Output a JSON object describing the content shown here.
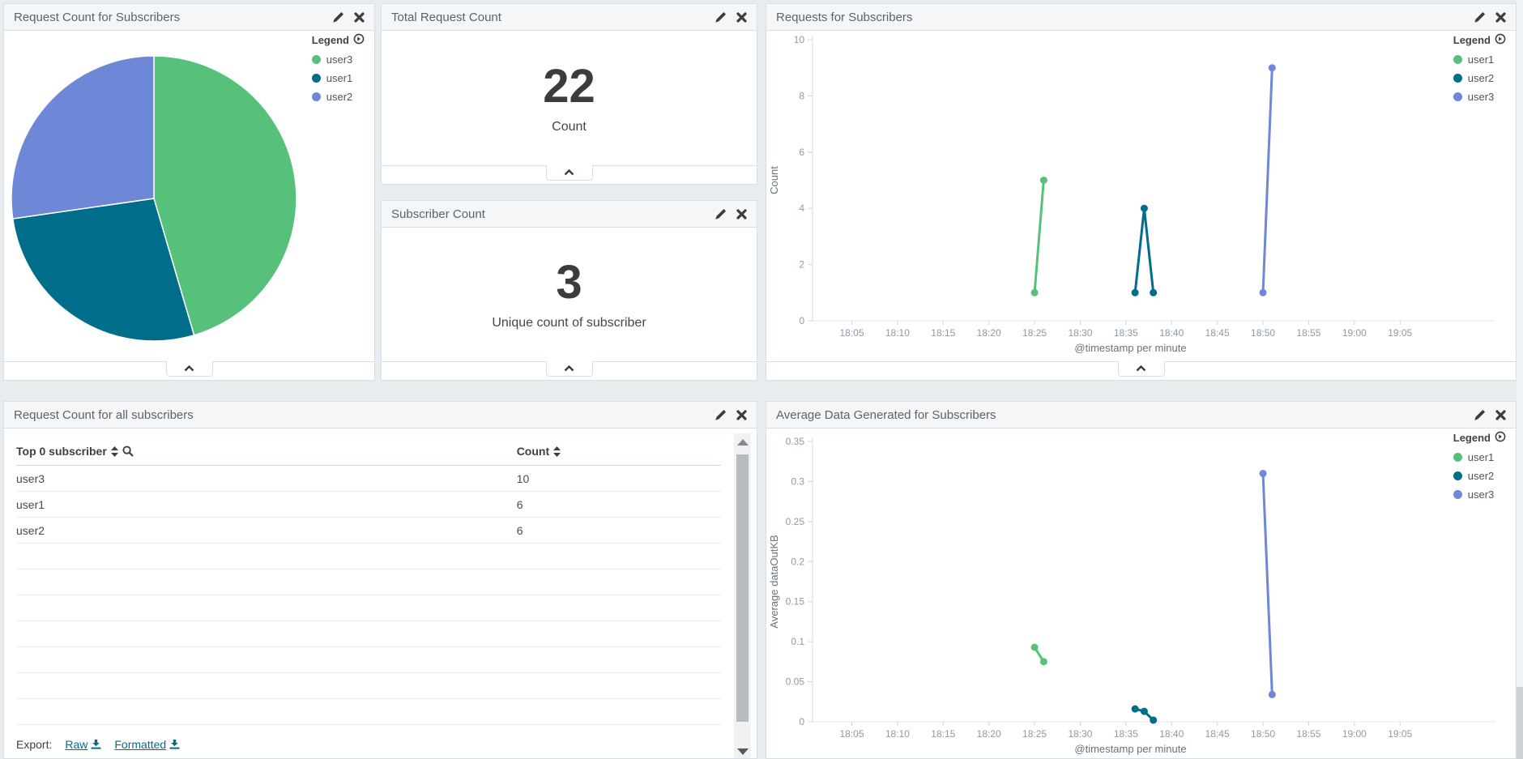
{
  "palette": {
    "user1_chart": "#57c17b",
    "user2_chart": "#006e8a",
    "user3_chart": "#6f87d7"
  },
  "panels": {
    "pie": {
      "title": "Request Count for Subscribers"
    },
    "total_requests": {
      "title": "Total Request Count",
      "value": "22",
      "label": "Count"
    },
    "subscriber_count": {
      "title": "Subscriber Count",
      "value": "3",
      "label": "Unique count of subscriber"
    },
    "requests_chart": {
      "title": "Requests for Subscribers"
    },
    "table": {
      "title": "Request Count for all subscribers",
      "export_label": "Export:",
      "export_links": [
        "Raw",
        "Formatted"
      ]
    },
    "avg_chart": {
      "title": "Average Data Generated for Subscribers"
    }
  },
  "chart_data": [
    {
      "panel": "pie",
      "type": "pie",
      "title": "Request Count for Subscribers",
      "legend_title": "Legend",
      "legend_position": "top-right",
      "start_angle": "top",
      "direction": "clockwise",
      "slices": [
        {
          "label": "user3",
          "value": 10,
          "color": "#57c17b"
        },
        {
          "label": "user1",
          "value": 6,
          "color": "#006e8a"
        },
        {
          "label": "user2",
          "value": 6,
          "color": "#6f87d7"
        }
      ]
    },
    {
      "panel": "requests_chart",
      "type": "line",
      "title": "Requests for Subscribers",
      "xlabel": "@timestamp per minute",
      "ylabel": "Count",
      "ylim": [
        0,
        10
      ],
      "yticks": [
        0,
        2,
        4,
        6,
        8,
        10
      ],
      "xticks": [
        "18:05",
        "18:10",
        "18:15",
        "18:20",
        "18:25",
        "18:30",
        "18:35",
        "18:40",
        "18:45",
        "18:50",
        "18:55",
        "19:00",
        "19:05"
      ],
      "legend_title": "Legend",
      "legend_position": "top-right",
      "grid": false,
      "series": [
        {
          "name": "user1",
          "color": "#57c17b",
          "points": [
            [
              "18:25",
              1
            ],
            [
              "18:26",
              5
            ]
          ]
        },
        {
          "name": "user2",
          "color": "#006e8a",
          "points": [
            [
              "18:36",
              1
            ],
            [
              "18:37",
              4
            ],
            [
              "18:38",
              1
            ]
          ]
        },
        {
          "name": "user3",
          "color": "#6f87d7",
          "points": [
            [
              "18:50",
              1
            ],
            [
              "18:51",
              9
            ]
          ]
        }
      ]
    },
    {
      "panel": "table",
      "type": "table",
      "title": "Request Count for all subscribers",
      "columns": [
        "Top 0 subscriber",
        "Count"
      ],
      "rows": [
        [
          "user3",
          "10"
        ],
        [
          "user1",
          "6"
        ],
        [
          "user2",
          "6"
        ]
      ]
    },
    {
      "panel": "avg_chart",
      "type": "line",
      "title": "Average Data Generated for Subscribers",
      "xlabel": "@timestamp per minute",
      "ylabel": "Average dataOutKB",
      "ylim": [
        0,
        0.35
      ],
      "yticks": [
        0,
        0.05,
        0.1,
        0.15,
        0.2,
        0.25,
        0.3,
        0.35
      ],
      "xticks": [
        "18:05",
        "18:10",
        "18:15",
        "18:20",
        "18:25",
        "18:30",
        "18:35",
        "18:40",
        "18:45",
        "18:50",
        "18:55",
        "19:00",
        "19:05"
      ],
      "legend_title": "Legend",
      "legend_position": "top-right",
      "grid": false,
      "series": [
        {
          "name": "user1",
          "color": "#57c17b",
          "points": [
            [
              "18:25",
              0.093
            ],
            [
              "18:26",
              0.075
            ]
          ]
        },
        {
          "name": "user2",
          "color": "#006e8a",
          "points": [
            [
              "18:36",
              0.016
            ],
            [
              "18:37",
              0.013
            ],
            [
              "18:38",
              0.002
            ]
          ]
        },
        {
          "name": "user3",
          "color": "#6f87d7",
          "points": [
            [
              "18:50",
              0.31
            ],
            [
              "18:51",
              0.034
            ]
          ]
        }
      ]
    }
  ]
}
